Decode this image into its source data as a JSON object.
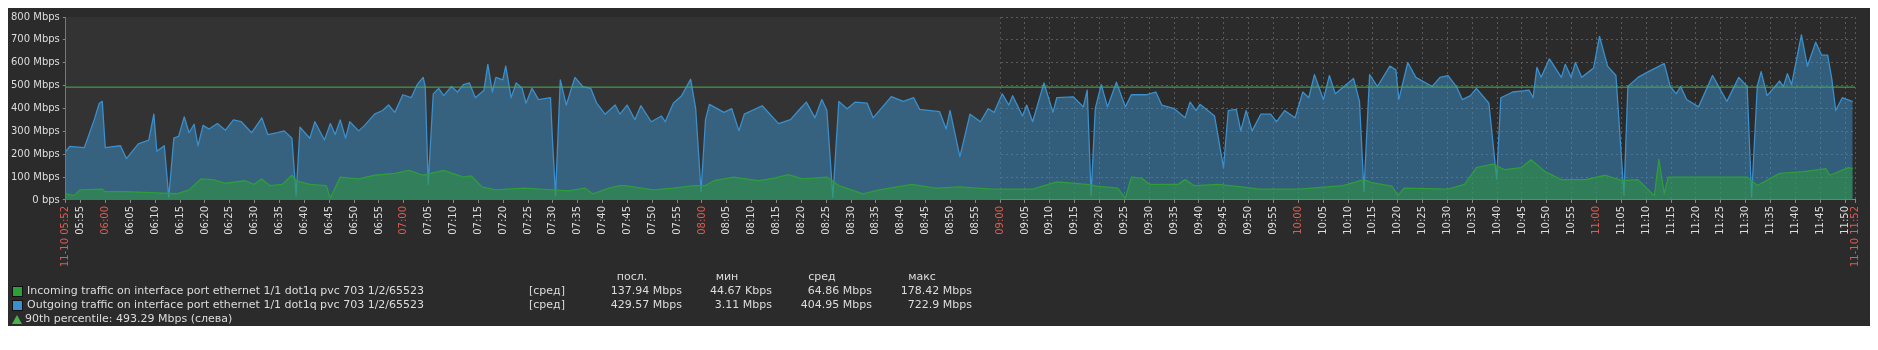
{
  "chart_data": {
    "type": "area",
    "xlim": [
      5.8667,
      11.8667
    ],
    "ylim": [
      0,
      800
    ],
    "yticks": [
      {
        "value": 0,
        "label": "0 bps"
      },
      {
        "value": 100,
        "label": "100 Mbps"
      },
      {
        "value": 200,
        "label": "200 Mbps"
      },
      {
        "value": 300,
        "label": "300 Mbps"
      },
      {
        "value": 400,
        "label": "400 Mbps"
      },
      {
        "value": 500,
        "label": "500 Mbps"
      },
      {
        "value": 600,
        "label": "600 Mbps"
      },
      {
        "value": 700,
        "label": "700 Mbps"
      },
      {
        "value": 800,
        "label": "800 Mbps"
      }
    ],
    "xticks": [
      {
        "value": 5.8667,
        "label": "11-10 05:52"
      },
      {
        "value": 5.9167,
        "label": "05:55"
      },
      {
        "value": 6,
        "label": "06:00"
      },
      {
        "value": 6.0833,
        "label": "06:05"
      },
      {
        "value": 6.1667,
        "label": "06:10"
      },
      {
        "value": 6.25,
        "label": "06:15"
      },
      {
        "value": 6.3333,
        "label": "06:20"
      },
      {
        "value": 6.4167,
        "label": "06:25"
      },
      {
        "value": 6.5,
        "label": "06:30"
      },
      {
        "value": 6.5833,
        "label": "06:35"
      },
      {
        "value": 6.6667,
        "label": "06:40"
      },
      {
        "value": 6.75,
        "label": "06:45"
      },
      {
        "value": 6.8333,
        "label": "06:50"
      },
      {
        "value": 6.9167,
        "label": "06:55"
      },
      {
        "value": 7,
        "label": "07:00"
      },
      {
        "value": 7.0833,
        "label": "07:05"
      },
      {
        "value": 7.1667,
        "label": "07:10"
      },
      {
        "value": 7.25,
        "label": "07:15"
      },
      {
        "value": 7.3333,
        "label": "07:20"
      },
      {
        "value": 7.4167,
        "label": "07:25"
      },
      {
        "value": 7.5,
        "label": "07:30"
      },
      {
        "value": 7.5833,
        "label": "07:35"
      },
      {
        "value": 7.6667,
        "label": "07:40"
      },
      {
        "value": 7.75,
        "label": "07:45"
      },
      {
        "value": 7.8333,
        "label": "07:50"
      },
      {
        "value": 7.9167,
        "label": "07:55"
      },
      {
        "value": 8,
        "label": "08:00"
      },
      {
        "value": 8.0833,
        "label": "08:05"
      },
      {
        "value": 8.1667,
        "label": "08:10"
      },
      {
        "value": 8.25,
        "label": "08:15"
      },
      {
        "value": 8.3333,
        "label": "08:20"
      },
      {
        "value": 8.4167,
        "label": "08:25"
      },
      {
        "value": 8.5,
        "label": "08:30"
      },
      {
        "value": 8.5833,
        "label": "08:35"
      },
      {
        "value": 8.6667,
        "label": "08:40"
      },
      {
        "value": 8.75,
        "label": "08:45"
      },
      {
        "value": 8.8333,
        "label": "08:50"
      },
      {
        "value": 8.9167,
        "label": "08:55"
      },
      {
        "value": 9,
        "label": "09:00"
      },
      {
        "value": 9.0833,
        "label": "09:05"
      },
      {
        "value": 9.1667,
        "label": "09:10"
      },
      {
        "value": 9.25,
        "label": "09:15"
      },
      {
        "value": 9.3333,
        "label": "09:20"
      },
      {
        "value": 9.4167,
        "label": "09:25"
      },
      {
        "value": 9.5,
        "label": "09:30"
      },
      {
        "value": 9.5833,
        "label": "09:35"
      },
      {
        "value": 9.6667,
        "label": "09:40"
      },
      {
        "value": 9.75,
        "label": "09:45"
      },
      {
        "value": 9.8333,
        "label": "09:50"
      },
      {
        "value": 9.9167,
        "label": "09:55"
      },
      {
        "value": 10,
        "label": "10:00"
      },
      {
        "value": 10.0833,
        "label": "10:05"
      },
      {
        "value": 10.1667,
        "label": "10:10"
      },
      {
        "value": 10.25,
        "label": "10:15"
      },
      {
        "value": 10.3333,
        "label": "10:20"
      },
      {
        "value": 10.4167,
        "label": "10:25"
      },
      {
        "value": 10.5,
        "label": "10:30"
      },
      {
        "value": 10.5833,
        "label": "10:35"
      },
      {
        "value": 10.6667,
        "label": "10:40"
      },
      {
        "value": 10.75,
        "label": "10:45"
      },
      {
        "value": 10.8333,
        "label": "10:50"
      },
      {
        "value": 10.9167,
        "label": "10:55"
      },
      {
        "value": 11,
        "label": "11:00"
      },
      {
        "value": 11.0833,
        "label": "11:05"
      },
      {
        "value": 11.1667,
        "label": "11:10"
      },
      {
        "value": 11.25,
        "label": "11:15"
      },
      {
        "value": 11.3333,
        "label": "11:20"
      },
      {
        "value": 11.4167,
        "label": "11:25"
      },
      {
        "value": 11.5,
        "label": "11:30"
      },
      {
        "value": 11.5833,
        "label": "11:35"
      },
      {
        "value": 11.6667,
        "label": "11:40"
      },
      {
        "value": 11.75,
        "label": "11:45"
      },
      {
        "value": 11.8333,
        "label": "11:50"
      },
      {
        "value": 11.8667,
        "label": "11-10 11:52"
      }
    ],
    "grid": true,
    "legend": "bottom",
    "bands": [
      {
        "axis": "x",
        "from": 5.8667,
        "to": 9,
        "color": "#333333"
      }
    ],
    "ref_lines": [
      {
        "axis": "y",
        "value": 493.29,
        "label": "90th percentile: 493.29 Mbps (слева)",
        "color": "#4caf50"
      }
    ],
    "annotations": [
      "посл.",
      "мин",
      "сред",
      "макс",
      "[сред]",
      "137.94 Mbps",
      "44.67 Kbps",
      "64.86 Mbps",
      "178.42 Mbps",
      "[сред]",
      "429.57 Mbps",
      "3.11 Mbps",
      "404.95 Mbps",
      "722.9 Mbps"
    ],
    "series": [
      {
        "name": "Incoming traffic on interface port ethernet 1/1 dot1q pvc 703 1/2/65523",
        "color": "#2e9e3a",
        "x": [
          5.867,
          5.894,
          5.914,
          5.989,
          5.999,
          6.064,
          6.172,
          6.239,
          6.28,
          6.32,
          6.36,
          6.402,
          6.469,
          6.497,
          6.524,
          6.55,
          6.592,
          6.625,
          6.639,
          6.685,
          6.74,
          6.754,
          6.787,
          6.849,
          6.902,
          6.97,
          7.017,
          7.065,
          7.134,
          7.2,
          7.227,
          7.262,
          7.309,
          7.404,
          7.499,
          7.552,
          7.607,
          7.634,
          7.689,
          7.725,
          7.742,
          7.837,
          7.904,
          7.972,
          8.012,
          8.04,
          8.107,
          8.189,
          8.242,
          8.29,
          8.337,
          8.419,
          8.459,
          8.54,
          8.595,
          8.704,
          8.784,
          8.865,
          8.974,
          9.109,
          9.19,
          9.292,
          9.325,
          9.394,
          9.42,
          9.44,
          9.475,
          9.502,
          9.597,
          9.62,
          9.65,
          9.732,
          9.824,
          9.867,
          10.002,
          10.15,
          10.219,
          10.245,
          10.314,
          10.334,
          10.354,
          10.502,
          10.557,
          10.597,
          10.652,
          10.692,
          10.747,
          10.78,
          10.827,
          10.882,
          10.964,
          11.03,
          11.085,
          11.139,
          11.18,
          11.194,
          11.209,
          11.227,
          11.24,
          11.355,
          11.505,
          11.539,
          11.614,
          11.694,
          11.769,
          11.782,
          11.844,
          11.859
        ],
        "values": [
          27,
          19,
          44,
          47,
          36,
          36,
          31,
          27,
          44,
          92,
          89,
          73,
          84,
          68,
          92,
          63,
          68,
          108,
          84,
          68,
          63,
          8,
          100,
          92,
          108,
          116,
          129,
          108,
          129,
          100,
          105,
          57,
          44,
          52,
          44,
          40,
          52,
          27,
          52,
          63,
          63,
          44,
          52,
          63,
          63,
          84,
          100,
          84,
          95,
          111,
          92,
          100,
          63,
          27,
          44,
          68,
          52,
          57,
          47,
          47,
          79,
          68,
          60,
          52,
          8,
          100,
          95,
          68,
          68,
          89,
          63,
          68,
          55,
          47,
          47,
          63,
          89,
          76,
          60,
          19,
          52,
          47,
          68,
          141,
          157,
          132,
          141,
          176,
          124,
          89,
          89,
          108,
          84,
          89,
          36,
          19,
          178,
          27,
          100,
          100,
          100,
          63,
          116,
          124,
          137,
          108,
          141,
          138
        ]
      },
      {
        "name": "Outgoing traffic on interface port ethernet 1/1 dot1q pvc 703 1/2/65523",
        "color": "#3a8fcc",
        "x": [
          5.867,
          5.88,
          5.929,
          5.962,
          5.979,
          5.989,
          5.999,
          6.05,
          6.07,
          6.11,
          6.145,
          6.162,
          6.172,
          6.197,
          6.212,
          6.229,
          6.245,
          6.264,
          6.28,
          6.297,
          6.31,
          6.327,
          6.347,
          6.375,
          6.402,
          6.429,
          6.455,
          6.49,
          6.524,
          6.544,
          6.577,
          6.599,
          6.625,
          6.639,
          6.652,
          6.685,
          6.702,
          6.734,
          6.754,
          6.77,
          6.787,
          6.805,
          6.819,
          6.849,
          6.869,
          6.902,
          6.929,
          6.949,
          6.97,
          6.997,
          7.025,
          7.045,
          7.065,
          7.072,
          7.082,
          7.099,
          7.117,
          7.134,
          7.16,
          7.18,
          7.2,
          7.22,
          7.24,
          7.269,
          7.282,
          7.297,
          7.309,
          7.332,
          7.342,
          7.36,
          7.377,
          7.397,
          7.41,
          7.43,
          7.452,
          7.492,
          7.499,
          7.509,
          7.525,
          7.545,
          7.574,
          7.6,
          7.627,
          7.647,
          7.675,
          7.709,
          7.725,
          7.749,
          7.775,
          7.795,
          7.83,
          7.864,
          7.877,
          7.904,
          7.932,
          7.962,
          7.979,
          7.997,
          8.012,
          8.025,
          8.074,
          8.1,
          8.124,
          8.142,
          8.202,
          8.257,
          8.297,
          8.324,
          8.35,
          8.379,
          8.402,
          8.419,
          8.439,
          8.459,
          8.487,
          8.514,
          8.554,
          8.574,
          8.635,
          8.675,
          8.71,
          8.73,
          8.797,
          8.819,
          8.832,
          8.865,
          8.899,
          8.934,
          8.96,
          8.98,
          9.007,
          9.029,
          9.042,
          9.075,
          9.089,
          9.109,
          9.147,
          9.177,
          9.19,
          9.245,
          9.279,
          9.292,
          9.305,
          9.319,
          9.339,
          9.36,
          9.39,
          9.42,
          9.44,
          9.489,
          9.522,
          9.542,
          9.584,
          9.62,
          9.637,
          9.657,
          9.67,
          9.719,
          9.749,
          9.765,
          9.792,
          9.807,
          9.825,
          9.845,
          9.874,
          9.907,
          9.927,
          9.954,
          9.989,
          10.015,
          10.035,
          10.054,
          10.084,
          10.104,
          10.124,
          10.185,
          10.205,
          10.22,
          10.239,
          10.265,
          10.307,
          10.327,
          10.337,
          10.367,
          10.394,
          10.449,
          10.475,
          10.502,
          10.53,
          10.55,
          10.577,
          10.597,
          10.639,
          10.665,
          10.679,
          10.719,
          10.774,
          10.787,
          10.8,
          10.814,
          10.842,
          10.882,
          10.895,
          10.915,
          10.929,
          10.95,
          10.99,
          11.01,
          11.037,
          11.065,
          11.092,
          11.105,
          11.139,
          11.174,
          11.227,
          11.247,
          11.267,
          11.282,
          11.302,
          11.342,
          11.389,
          11.437,
          11.477,
          11.505,
          11.52,
          11.539,
          11.552,
          11.572,
          11.614,
          11.627,
          11.64,
          11.654,
          11.687,
          11.707,
          11.735,
          11.755,
          11.775,
          11.789,
          11.802,
          11.824,
          11.859
        ],
        "values": [
          213,
          234,
          229,
          350,
          423,
          431,
          229,
          237,
          181,
          245,
          262,
          375,
          213,
          237,
          11,
          270,
          278,
          363,
          294,
          331,
          237,
          326,
          310,
          334,
          305,
          350,
          342,
          294,
          359,
          286,
          294,
          302,
          270,
          19,
          318,
          270,
          342,
          262,
          334,
          286,
          350,
          270,
          342,
          302,
          326,
          375,
          391,
          415,
          383,
          460,
          447,
          504,
          536,
          496,
          68,
          464,
          488,
          456,
          496,
          472,
          504,
          512,
          447,
          480,
          593,
          472,
          536,
          525,
          585,
          447,
          512,
          488,
          423,
          488,
          439,
          447,
          254,
          19,
          525,
          415,
          536,
          496,
          488,
          423,
          375,
          415,
          375,
          415,
          351,
          412,
          342,
          367,
          342,
          423,
          456,
          528,
          399,
          36,
          351,
          418,
          383,
          399,
          302,
          375,
          412,
          334,
          351,
          391,
          428,
          359,
          439,
          391,
          11,
          431,
          399,
          428,
          423,
          359,
          452,
          431,
          447,
          396,
          386,
          310,
          391,
          189,
          375,
          342,
          399,
          383,
          464,
          415,
          456,
          367,
          415,
          342,
          512,
          383,
          447,
          451,
          407,
          480,
          19,
          399,
          504,
          407,
          515,
          407,
          460,
          460,
          472,
          415,
          399,
          359,
          428,
          391,
          418,
          367,
          141,
          391,
          396,
          302,
          391,
          302,
          375,
          375,
          342,
          391,
          359,
          472,
          447,
          548,
          439,
          544,
          464,
          531,
          431,
          36,
          548,
          496,
          585,
          569,
          439,
          601,
          536,
          496,
          536,
          544,
          496,
          439,
          456,
          488,
          423,
          92,
          447,
          472,
          480,
          447,
          580,
          536,
          617,
          536,
          593,
          536,
          601,
          536,
          577,
          715,
          585,
          544,
          19,
          496,
          536,
          561,
          596,
          496,
          464,
          496,
          439,
          407,
          544,
          431,
          536,
          496,
          11,
          496,
          561,
          456,
          520,
          496,
          552,
          504,
          722,
          585,
          690,
          633,
          633,
          528,
          391,
          447,
          430
        ]
      }
    ]
  }
}
